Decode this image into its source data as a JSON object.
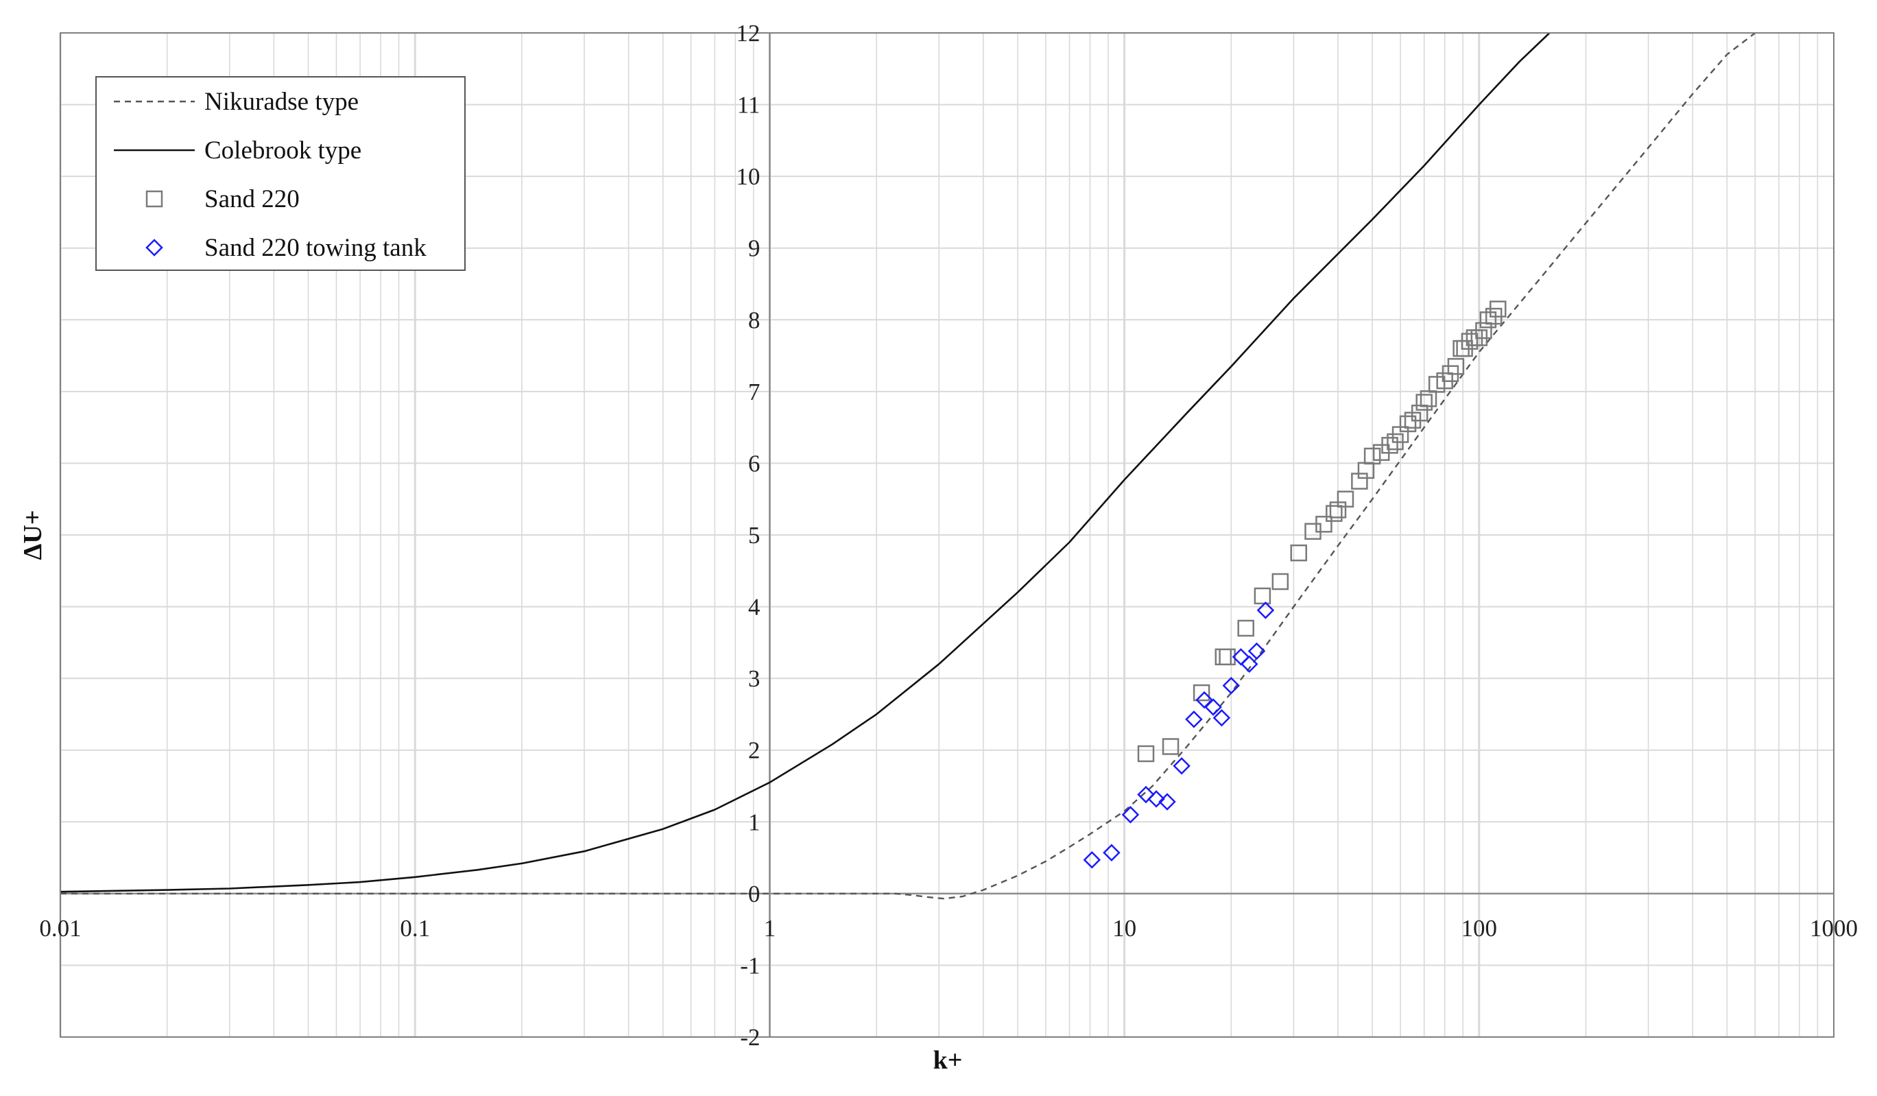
{
  "chart_data": {
    "type": "scatter",
    "xlabel": "k+",
    "ylabel": "ΔU+",
    "x_scale": "log",
    "xlim": [
      0.01,
      1000
    ],
    "ylim": [
      -2,
      12
    ],
    "x_ticks": [
      "0.01",
      "0.1",
      "1",
      "10",
      "100",
      "1000"
    ],
    "y_ticks": [
      "-2",
      "-1",
      "0",
      "1",
      "2",
      "3",
      "4",
      "5",
      "6",
      "7",
      "8",
      "9",
      "10",
      "11",
      "12"
    ],
    "grid": true,
    "legend_position": "top-left",
    "legend": [
      {
        "label": "Nikuradse type",
        "symbol": "dashed-line"
      },
      {
        "label": "Colebrook type",
        "symbol": "solid-line"
      },
      {
        "label": "Sand 220",
        "symbol": "square"
      },
      {
        "label": "Sand 220 towing tank",
        "symbol": "diamond"
      }
    ],
    "colors": {
      "nikuradse": "#555555",
      "colebrook": "#111111",
      "sand220": "#7a7a7a",
      "towing": "#1a1aff",
      "grid": "#d9d9d9"
    },
    "series": [
      {
        "name": "Nikuradse type",
        "kind": "line",
        "points": [
          [
            0.01,
            0
          ],
          [
            0.1,
            0
          ],
          [
            1,
            0
          ],
          [
            1.5,
            0
          ],
          [
            2,
            0
          ],
          [
            2.25,
            0
          ],
          [
            2.5,
            -0.02
          ],
          [
            2.8,
            -0.05
          ],
          [
            3.1,
            -0.07
          ],
          [
            3.5,
            -0.04
          ],
          [
            4,
            0.05
          ],
          [
            5,
            0.25
          ],
          [
            6,
            0.45
          ],
          [
            7,
            0.65
          ],
          [
            8,
            0.83
          ],
          [
            10,
            1.15
          ],
          [
            12,
            1.5
          ],
          [
            15,
            2.05
          ],
          [
            20,
            2.8
          ],
          [
            25,
            3.45
          ],
          [
            30,
            4.0
          ],
          [
            40,
            4.85
          ],
          [
            50,
            5.5
          ],
          [
            70,
            6.5
          ],
          [
            100,
            7.55
          ],
          [
            150,
            8.6
          ],
          [
            200,
            9.35
          ],
          [
            300,
            10.4
          ],
          [
            400,
            11.15
          ],
          [
            500,
            11.7
          ],
          [
            600,
            12.0
          ]
        ]
      },
      {
        "name": "Colebrook type",
        "kind": "line",
        "points": [
          [
            0.01,
            0.025
          ],
          [
            0.02,
            0.05
          ],
          [
            0.03,
            0.07
          ],
          [
            0.05,
            0.12
          ],
          [
            0.07,
            0.16
          ],
          [
            0.1,
            0.23
          ],
          [
            0.15,
            0.33
          ],
          [
            0.2,
            0.42
          ],
          [
            0.3,
            0.59
          ],
          [
            0.5,
            0.9
          ],
          [
            0.7,
            1.17
          ],
          [
            1,
            1.55
          ],
          [
            1.5,
            2.08
          ],
          [
            2,
            2.5
          ],
          [
            3,
            3.2
          ],
          [
            5,
            4.2
          ],
          [
            7,
            4.9
          ],
          [
            10,
            5.77
          ],
          [
            15,
            6.7
          ],
          [
            20,
            7.35
          ],
          [
            30,
            8.3
          ],
          [
            50,
            9.4
          ],
          [
            70,
            10.15
          ],
          [
            100,
            11.0
          ],
          [
            130,
            11.6
          ],
          [
            158,
            12.0
          ]
        ]
      },
      {
        "name": "Sand 220",
        "kind": "scatter",
        "marker": "square",
        "points": [
          [
            11.5,
            1.95
          ],
          [
            13.5,
            2.05
          ],
          [
            16.5,
            2.8
          ],
          [
            19,
            3.3
          ],
          [
            19.5,
            3.3
          ],
          [
            22,
            3.7
          ],
          [
            24.5,
            4.15
          ],
          [
            27.5,
            4.35
          ],
          [
            31,
            4.75
          ],
          [
            34,
            5.05
          ],
          [
            36.5,
            5.15
          ],
          [
            39,
            5.3
          ],
          [
            40,
            5.35
          ],
          [
            42,
            5.5
          ],
          [
            46,
            5.75
          ],
          [
            48,
            5.9
          ],
          [
            50,
            6.1
          ],
          [
            53,
            6.15
          ],
          [
            56,
            6.25
          ],
          [
            58,
            6.3
          ],
          [
            60,
            6.4
          ],
          [
            63,
            6.55
          ],
          [
            65,
            6.6
          ],
          [
            68,
            6.7
          ],
          [
            70,
            6.85
          ],
          [
            72,
            6.9
          ],
          [
            76,
            7.1
          ],
          [
            80,
            7.15
          ],
          [
            83,
            7.25
          ],
          [
            86,
            7.35
          ],
          [
            89,
            7.6
          ],
          [
            91,
            7.6
          ],
          [
            94,
            7.7
          ],
          [
            97,
            7.75
          ],
          [
            100,
            7.75
          ],
          [
            103,
            7.85
          ],
          [
            106,
            8.0
          ],
          [
            110,
            8.05
          ],
          [
            113,
            8.15
          ]
        ]
      },
      {
        "name": "Sand 220 towing tank",
        "kind": "scatter",
        "marker": "diamond",
        "points": [
          [
            8.1,
            0.47
          ],
          [
            9.2,
            0.57
          ],
          [
            10.4,
            1.1
          ],
          [
            11.5,
            1.38
          ],
          [
            12.3,
            1.32
          ],
          [
            13.2,
            1.28
          ],
          [
            14.5,
            1.78
          ],
          [
            15.7,
            2.43
          ],
          [
            16.8,
            2.7
          ],
          [
            17.8,
            2.6
          ],
          [
            18.8,
            2.45
          ],
          [
            20,
            2.9
          ],
          [
            21.3,
            3.3
          ],
          [
            22.5,
            3.2
          ],
          [
            23.6,
            3.38
          ],
          [
            25,
            3.95
          ]
        ]
      }
    ]
  }
}
